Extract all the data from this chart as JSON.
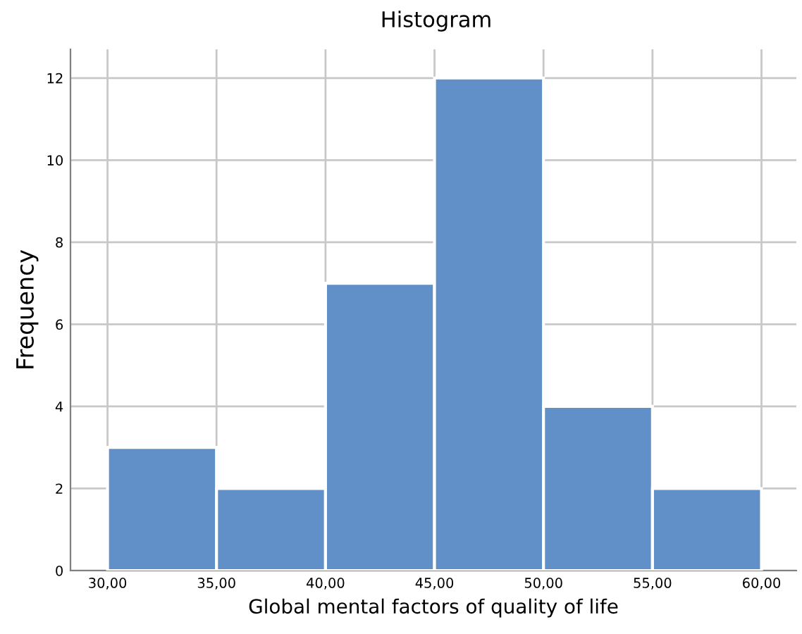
{
  "chart_data": {
    "type": "histogram",
    "title": "Histogram",
    "xlabel": "Global mental factors of quality of life",
    "ylabel": "Frequency",
    "bins": [
      30,
      35,
      40,
      45,
      50,
      55,
      60
    ],
    "values": [
      3,
      2,
      7,
      12,
      4,
      2
    ],
    "color": "#6190c8",
    "xlim": [
      28.3,
      61.6
    ],
    "ylim": [
      0,
      12.7
    ],
    "xticks": [
      {
        "value": 30,
        "label": "30,00"
      },
      {
        "value": 35,
        "label": "35,00"
      },
      {
        "value": 40,
        "label": "40,00"
      },
      {
        "value": 45,
        "label": "45,00"
      },
      {
        "value": 50,
        "label": "50,00"
      },
      {
        "value": 55,
        "label": "55,00"
      },
      {
        "value": 60,
        "label": "60,00"
      }
    ],
    "yticks": [
      0,
      2,
      4,
      6,
      8,
      10,
      12
    ],
    "grid": true
  }
}
